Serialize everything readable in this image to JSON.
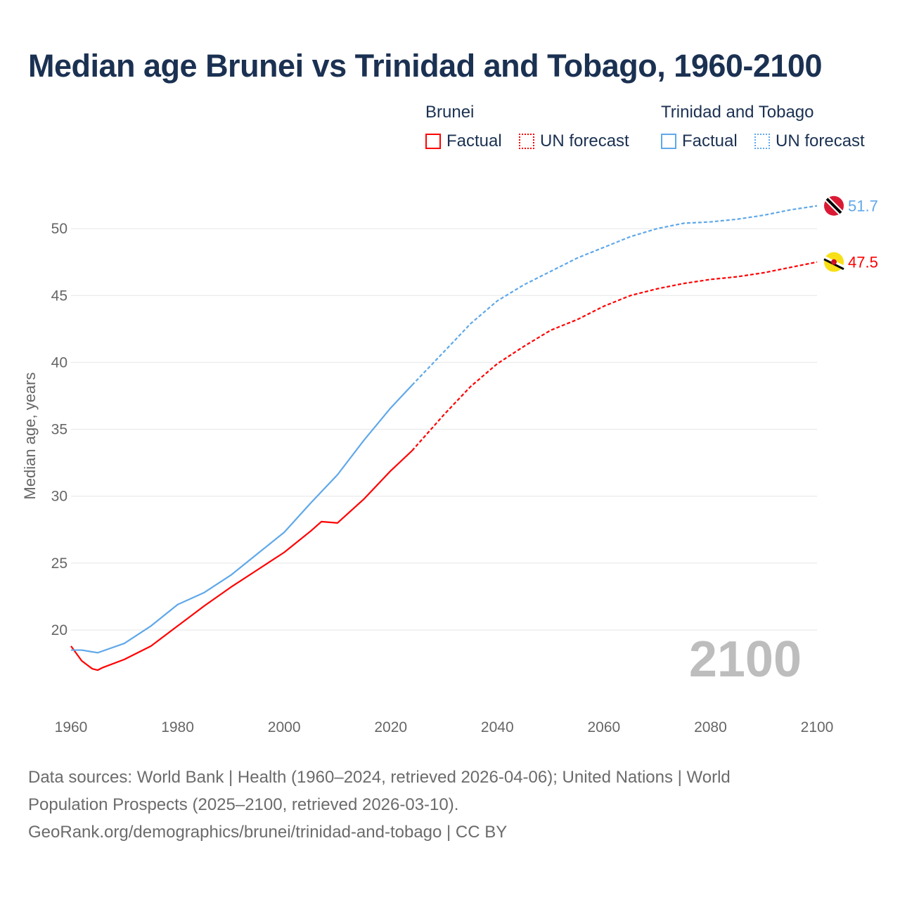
{
  "title": "Median age Brunei vs Trinidad and Tobago, 1960-2100",
  "legend": {
    "groups": [
      {
        "name": "Brunei",
        "factual": "Factual",
        "forecast": "UN forecast",
        "color": "#ff0000"
      },
      {
        "name": "Trinidad and Tobago",
        "factual": "Factual",
        "forecast": "UN forecast",
        "color": "#5fa8ea"
      }
    ]
  },
  "year_watermark": "2100",
  "footer": {
    "line1": "Data sources: World Bank | Health (1960–2024, retrieved 2026-04-06); United Nations | World",
    "line2": "Population Prospects (2025–2100, retrieved 2026-03-10).",
    "line3": "GeoRank.org/demographics/brunei/trinidad-and-tobago | CC BY"
  },
  "chart_data": {
    "type": "line",
    "title": "Median age Brunei vs Trinidad and Tobago, 1960-2100",
    "xlabel": "",
    "ylabel": "Median age, years",
    "xlim": [
      1960,
      2100
    ],
    "ylim": [
      14,
      53.5
    ],
    "xticks": [
      "1960",
      "1980",
      "2000",
      "2020",
      "2040",
      "2060",
      "2080",
      "2100"
    ],
    "yticks": [
      "20",
      "25",
      "30",
      "35",
      "40",
      "45",
      "50"
    ],
    "grid": true,
    "forecast_start": 2024,
    "series": [
      {
        "name": "Brunei",
        "color": "#ff0000",
        "end_label": "47.5",
        "flag": "brunei-flag",
        "x": [
          1960,
          1962,
          1964,
          1965,
          1966,
          1970,
          1975,
          1980,
          1985,
          1990,
          1995,
          2000,
          2005,
          2007,
          2010,
          2015,
          2020,
          2024,
          2030,
          2035,
          2040,
          2045,
          2050,
          2055,
          2060,
          2065,
          2070,
          2075,
          2080,
          2085,
          2090,
          2095,
          2100
        ],
        "values": [
          18.8,
          17.7,
          17.1,
          17.0,
          17.2,
          17.8,
          18.8,
          20.3,
          21.8,
          23.2,
          24.5,
          25.8,
          27.4,
          28.1,
          28.0,
          29.8,
          31.9,
          33.4,
          36.1,
          38.2,
          39.9,
          41.2,
          42.4,
          43.2,
          44.2,
          45.0,
          45.5,
          45.9,
          46.2,
          46.4,
          46.7,
          47.1,
          47.5
        ]
      },
      {
        "name": "Trinidad and Tobago",
        "color": "#5fa8ea",
        "end_label": "51.7",
        "flag": "trinidad-and-tobago-flag",
        "x": [
          1960,
          1962,
          1965,
          1970,
          1975,
          1980,
          1985,
          1990,
          1995,
          2000,
          2005,
          2010,
          2015,
          2020,
          2024,
          2030,
          2035,
          2040,
          2045,
          2050,
          2055,
          2060,
          2065,
          2070,
          2075,
          2080,
          2085,
          2090,
          2095,
          2100
        ],
        "values": [
          18.5,
          18.5,
          18.3,
          19.0,
          20.3,
          21.9,
          22.8,
          24.1,
          25.7,
          27.3,
          29.5,
          31.6,
          34.2,
          36.6,
          38.3,
          40.8,
          42.9,
          44.6,
          45.8,
          46.8,
          47.8,
          48.6,
          49.4,
          50.0,
          50.4,
          50.5,
          50.7,
          51.0,
          51.4,
          51.7
        ]
      }
    ]
  }
}
